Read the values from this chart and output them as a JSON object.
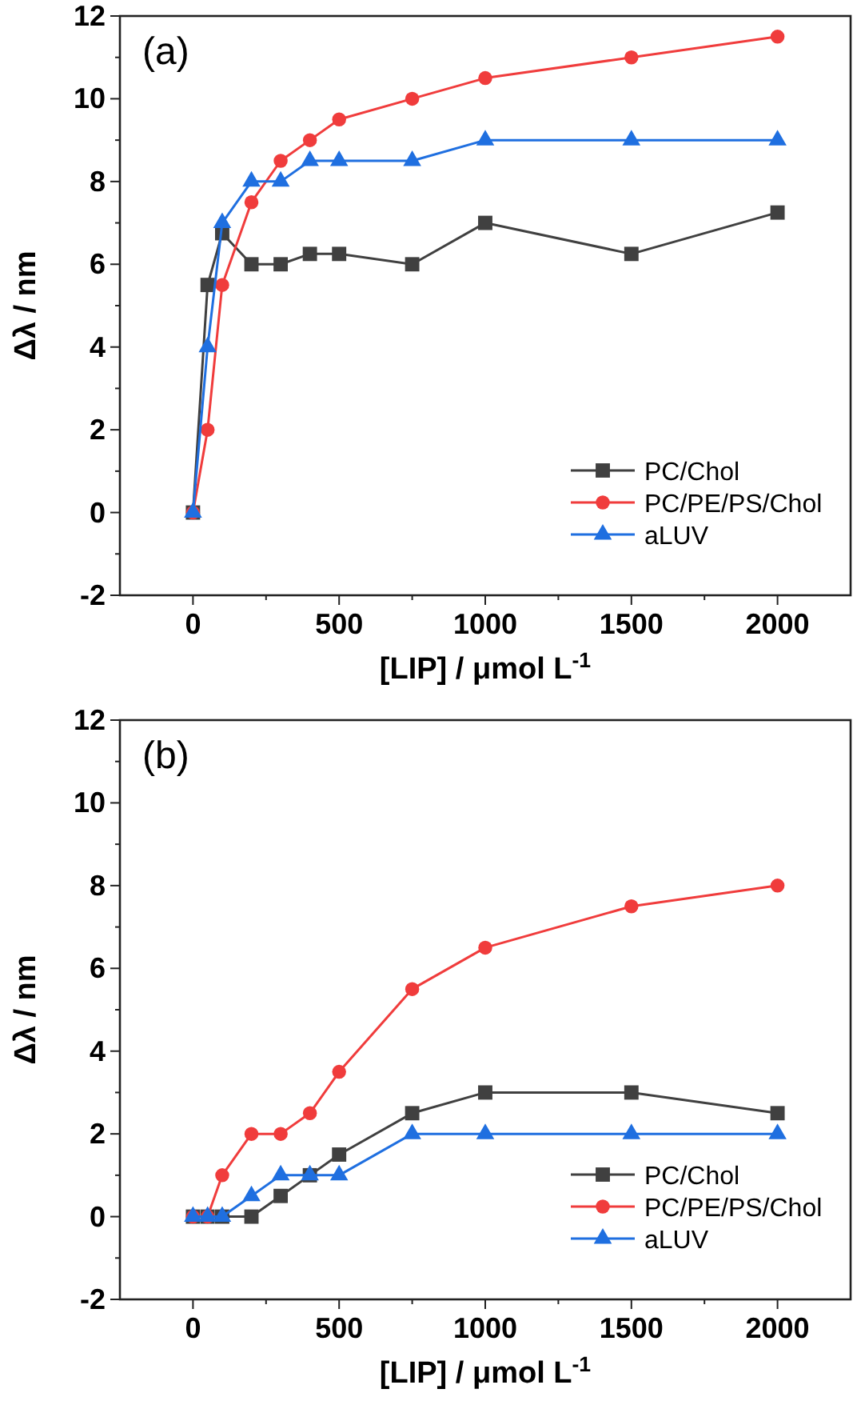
{
  "chart_data": [
    {
      "type": "line",
      "title": "(a)",
      "xlabel": "[LIP] / μmol L$^{-1}$",
      "ylabel": "Δλ / nm",
      "x": [
        0,
        50,
        100,
        200,
        300,
        400,
        500,
        750,
        1000,
        1500,
        2000
      ],
      "xlim": [
        -250,
        2250
      ],
      "xticks": [
        0,
        {
          "value": 250,
          "label": null
        },
        500,
        {
          "value": 750,
          "label": null
        },
        1000,
        {
          "value": 1250,
          "label": null
        },
        1500,
        {
          "value": 1750,
          "label": null
        },
        2000
      ],
      "ylim": [
        -2,
        12
      ],
      "yticks": [
        -2,
        {
          "value": -1,
          "label": null
        },
        0,
        {
          "value": 1,
          "label": null
        },
        2,
        {
          "value": 3,
          "label": null
        },
        4,
        {
          "value": 5,
          "label": null
        },
        6,
        {
          "value": 7,
          "label": null
        },
        8,
        {
          "value": 9,
          "label": null
        },
        10,
        {
          "value": 11,
          "label": null
        },
        12
      ],
      "grid": false,
      "legend": "bottom right",
      "line_style": "solid",
      "series": [
        {
          "name": "PC/Chol",
          "color": "#404040",
          "marker": "square",
          "values": [
            0,
            5.5,
            6.75,
            6,
            6,
            6.25,
            6.25,
            6,
            7,
            6.25,
            7.25
          ]
        },
        {
          "name": "PC/PE/PS/Chol",
          "color": "#f03c3c",
          "marker": "circle",
          "values": [
            0,
            2,
            5.5,
            7.5,
            8.5,
            9,
            9.5,
            10,
            10.5,
            11,
            11.5
          ]
        },
        {
          "name": "aLUV",
          "color": "#1f6fe0",
          "marker": "triangle",
          "values": [
            0,
            4,
            7,
            8,
            8,
            8.5,
            8.5,
            8.5,
            9,
            9,
            9
          ]
        }
      ]
    },
    {
      "type": "line",
      "title": "(b)",
      "xlabel": "[LIP] / μmol L$^{-1}$",
      "ylabel": "Δλ / nm",
      "x": [
        0,
        50,
        100,
        200,
        300,
        400,
        500,
        750,
        1000,
        1500,
        2000
      ],
      "xlim": [
        -250,
        2250
      ],
      "xticks": [
        0,
        {
          "value": 250,
          "label": null
        },
        500,
        {
          "value": 750,
          "label": null
        },
        1000,
        {
          "value": 1250,
          "label": null
        },
        1500,
        {
          "value": 1750,
          "label": null
        },
        2000
      ],
      "ylim": [
        -2,
        12
      ],
      "yticks": [
        -2,
        {
          "value": -1,
          "label": null
        },
        0,
        {
          "value": 1,
          "label": null
        },
        2,
        {
          "value": 3,
          "label": null
        },
        4,
        {
          "value": 5,
          "label": null
        },
        6,
        {
          "value": 7,
          "label": null
        },
        8,
        {
          "value": 9,
          "label": null
        },
        10,
        {
          "value": 11,
          "label": null
        },
        12
      ],
      "grid": false,
      "legend": "bottom right",
      "line_style": "solid",
      "series": [
        {
          "name": "PC/Chol",
          "color": "#404040",
          "marker": "square",
          "values": [
            0,
            0,
            0,
            0,
            0.5,
            1,
            1.5,
            2.5,
            3,
            3,
            2.5
          ]
        },
        {
          "name": "PC/PE/PS/Chol",
          "color": "#f03c3c",
          "marker": "circle",
          "values": [
            0,
            0,
            1,
            2,
            2,
            2.5,
            3.5,
            5.5,
            6.5,
            7.5,
            8
          ]
        },
        {
          "name": "aLUV",
          "color": "#1f6fe0",
          "marker": "triangle",
          "values": [
            0,
            0,
            0,
            0.5,
            1,
            1,
            1,
            2,
            2,
            2,
            2
          ]
        }
      ]
    }
  ]
}
